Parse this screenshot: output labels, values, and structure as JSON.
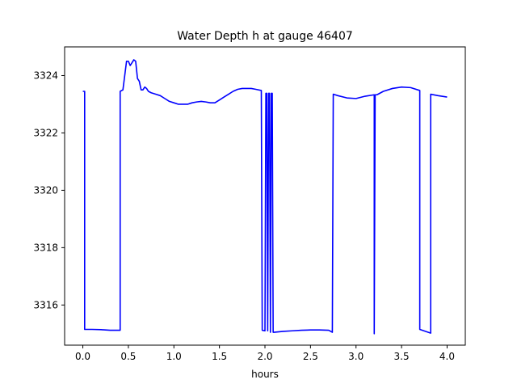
{
  "chart_data": {
    "type": "line",
    "title": "Water Depth h at gauge 46407",
    "xlabel": "hours",
    "ylabel": "",
    "xlim": [
      -0.2,
      4.2
    ],
    "ylim": [
      3314.6,
      3325.0
    ],
    "x_ticks": [
      0.0,
      0.5,
      1.0,
      1.5,
      2.0,
      2.5,
      3.0,
      3.5,
      4.0
    ],
    "x_tick_labels": [
      "0.0",
      "0.5",
      "1.0",
      "1.5",
      "2.0",
      "2.5",
      "3.0",
      "3.5",
      "4.0"
    ],
    "y_ticks": [
      3316,
      3318,
      3320,
      3322,
      3324
    ],
    "y_tick_labels": [
      "3316",
      "3318",
      "3320",
      "3322",
      "3324"
    ],
    "grid": false,
    "color": "#0000ff",
    "series": [
      {
        "x": [
          0.0,
          0.02,
          0.02,
          0.05,
          0.1,
          0.2,
          0.25,
          0.3,
          0.35,
          0.41,
          0.41,
          0.44,
          0.46,
          0.48,
          0.5,
          0.52,
          0.54,
          0.56,
          0.58,
          0.6,
          0.62,
          0.64,
          0.66,
          0.68,
          0.7,
          0.72,
          0.75,
          0.8,
          0.85,
          0.9,
          0.95,
          1.0,
          1.05,
          1.1,
          1.15,
          1.2,
          1.25,
          1.3,
          1.35,
          1.4,
          1.45,
          1.5,
          1.55,
          1.6,
          1.65,
          1.7,
          1.75,
          1.8,
          1.85,
          1.9,
          1.96,
          1.97,
          2.0,
          2.01,
          2.02,
          2.03,
          2.04,
          2.05,
          2.06,
          2.07,
          2.08,
          2.09,
          2.1,
          2.2,
          2.3,
          2.4,
          2.5,
          2.6,
          2.7,
          2.74,
          2.75,
          2.8,
          2.9,
          3.0,
          3.1,
          3.2,
          3.2,
          3.21,
          3.22,
          3.23,
          3.3,
          3.4,
          3.5,
          3.6,
          3.7,
          3.7,
          3.82,
          3.82,
          3.9,
          4.0
        ],
        "y": [
          3323.45,
          3323.45,
          3315.15,
          3315.15,
          3315.15,
          3315.14,
          3315.13,
          3315.12,
          3315.12,
          3315.12,
          3323.45,
          3323.5,
          3324.0,
          3324.5,
          3324.5,
          3324.35,
          3324.45,
          3324.55,
          3324.5,
          3323.9,
          3323.8,
          3323.5,
          3323.5,
          3323.6,
          3323.55,
          3323.45,
          3323.4,
          3323.35,
          3323.3,
          3323.2,
          3323.1,
          3323.05,
          3323.0,
          3323.0,
          3323.0,
          3323.05,
          3323.08,
          3323.1,
          3323.08,
          3323.05,
          3323.05,
          3323.15,
          3323.25,
          3323.35,
          3323.45,
          3323.52,
          3323.55,
          3323.55,
          3323.55,
          3323.52,
          3323.48,
          3315.12,
          3315.1,
          3323.38,
          3323.38,
          3315.1,
          3323.38,
          3323.38,
          3315.05,
          3323.38,
          3323.38,
          3315.05,
          3315.05,
          3315.08,
          3315.1,
          3315.12,
          3315.13,
          3315.13,
          3315.12,
          3315.05,
          3323.35,
          3323.3,
          3323.22,
          3323.2,
          3323.28,
          3323.33,
          3315.0,
          3323.33,
          3323.33,
          3323.33,
          3323.45,
          3323.55,
          3323.6,
          3323.58,
          3323.48,
          3315.15,
          3315.02,
          3323.35,
          3323.3,
          3323.25
        ]
      }
    ]
  }
}
